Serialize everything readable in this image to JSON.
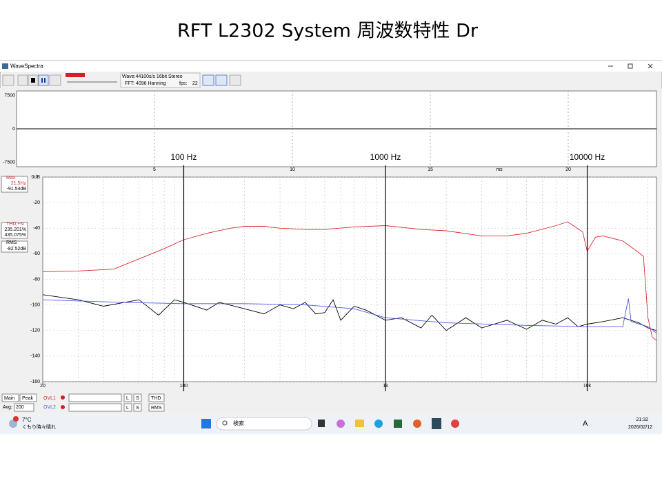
{
  "slide_title": "RFT L2302 System 周波数特性 Dr",
  "window": {
    "title": "WaveSpectra",
    "toolbar": {
      "mode": "Wave:44100s/s 16bit Stereo",
      "fft": "FFT: 4096 Hanning",
      "fps_label": "fps:",
      "fps": 22
    }
  },
  "waveform": {
    "xlim": [
      0,
      23.2
    ],
    "ylim": [
      -8500,
      8500
    ],
    "yticks": [
      7500,
      0,
      -7500
    ],
    "xticks": [
      5,
      10,
      15,
      20
    ],
    "x_unit": "ms"
  },
  "chart_data": {
    "type": "line",
    "xscale": "log",
    "grid": true,
    "xlim": [
      20,
      22050
    ],
    "ylim": [
      -160,
      0
    ],
    "xticks": [
      20,
      100,
      {
        "value": 1000,
        "label": "1k"
      },
      {
        "value": 10000,
        "label": "10k"
      }
    ],
    "yticks": [
      {
        "value": 0,
        "label": "0dB"
      },
      -20,
      -40,
      -60,
      -80,
      -100,
      -120,
      -140,
      -160
    ],
    "annotations": [
      {
        "text": "100 Hz",
        "x": 100
      },
      {
        "text": "1000 Hz",
        "x": 1000
      },
      {
        "text": "10000 Hz",
        "x": 10000
      }
    ],
    "series": [
      {
        "color": "#d42a2a",
        "x": [
          20,
          30,
          45,
          60,
          80,
          100,
          130,
          170,
          200,
          250,
          300,
          400,
          500,
          700,
          1000,
          1500,
          2000,
          3000,
          4000,
          5000,
          7000,
          8000,
          9500,
          10000,
          11000,
          12000,
          15000,
          18000,
          19000,
          20000,
          21000,
          22050
        ],
        "values": [
          -74,
          -73.5,
          -72,
          -64,
          -56,
          -49,
          -44,
          -40,
          -38.5,
          -38.5,
          -40,
          -41,
          -41,
          -39,
          -38,
          -41,
          -42,
          -46,
          -46,
          -44,
          -38,
          -35,
          -43,
          -58,
          -47,
          -46,
          -50,
          -59,
          -62,
          -110,
          -125,
          -128
        ]
      },
      {
        "color": "#000000",
        "x": [
          20,
          30,
          40,
          60,
          75,
          90,
          100,
          130,
          150,
          200,
          250,
          300,
          350,
          400,
          450,
          500,
          550,
          600,
          700,
          800,
          1000,
          1200,
          1500,
          1700,
          2000,
          2500,
          3000,
          4000,
          5000,
          6000,
          7000,
          8000,
          9000,
          10000,
          12000,
          15000,
          18000,
          20000,
          22050
        ],
        "values": [
          -92,
          -96,
          -101,
          -96,
          -108,
          -96,
          -98,
          -104,
          -98,
          -103,
          -107,
          -100,
          -103,
          -98,
          -107,
          -106,
          -96,
          -112,
          -101,
          -104,
          -112,
          -110,
          -118,
          -108,
          -120,
          -110,
          -118,
          -112,
          -119,
          -112,
          -115,
          -110,
          -117,
          -115,
          -113,
          -110,
          -114,
          -118,
          -120
        ]
      },
      {
        "color": "#4a5ae0",
        "x": [
          20,
          50,
          100,
          200,
          400,
          700,
          1000,
          2000,
          5000,
          10000,
          15000,
          16000,
          16500,
          20000,
          22050
        ],
        "values": [
          -96,
          -98,
          -99,
          -99,
          -100,
          -103,
          -110,
          -114,
          -116,
          -117,
          -117,
          -95,
          -113,
          -117,
          -122
        ]
      }
    ]
  },
  "info": {
    "max_label": "Max",
    "max_freq": "21.5Hz",
    "max_level": "-91.54dB",
    "thd_label": "THD,+N",
    "thd1": "235.201%",
    "thd2": "435.075%",
    "rms_label": "RMS",
    "rms": "-82.52dB"
  },
  "controls": {
    "main": "Main",
    "peak": "Peak",
    "ovl1": "OVL1",
    "l1": "L",
    "s1": "S",
    "thd": "THD",
    "avg_label": "Avg:",
    "avg": "200",
    "ovl2": "OVL2",
    "l2": "L",
    "s2": "S",
    "rms": "RMS"
  },
  "taskbar": {
    "temp": "7°C",
    "weather": "くもり時々晴れ",
    "search": "検索",
    "ime": "A",
    "time": "21:32",
    "date": "2026/02/12"
  }
}
